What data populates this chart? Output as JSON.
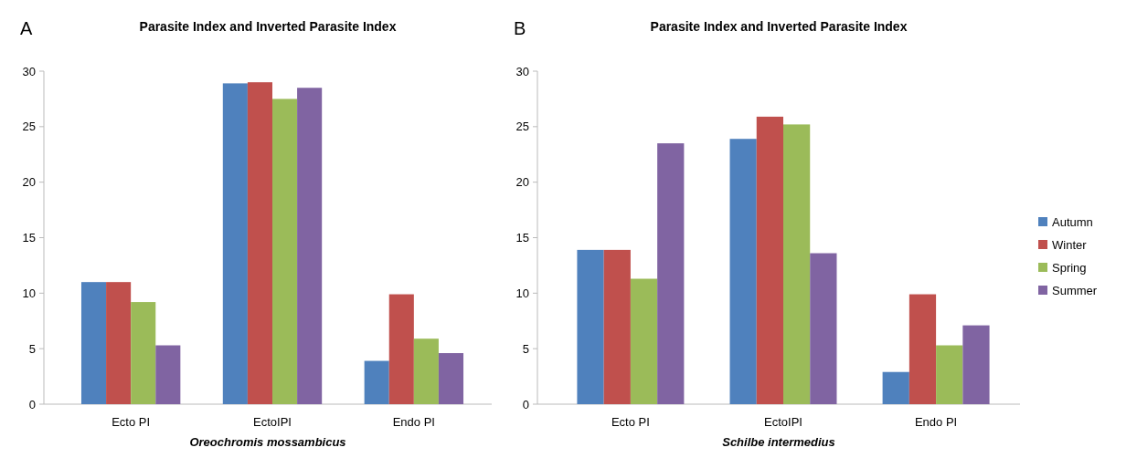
{
  "chart_data": [
    {
      "type": "bar",
      "title": "Parasite Index and Inverted Parasite Index",
      "annotations": [
        "A"
      ],
      "xlabel": "Oreochromis mossambicus",
      "categories": [
        "Ecto PI",
        "EctoIPI",
        "Endo PI"
      ],
      "ylim": [
        0,
        30
      ],
      "yticks": [
        0,
        5,
        10,
        15,
        20,
        25,
        30
      ],
      "legend": false,
      "series": [
        {
          "color": "#4f81bd",
          "values": [
            11,
            28.9,
            3.9
          ]
        },
        {
          "color": "#c0504d",
          "values": [
            11,
            29,
            9.9
          ]
        },
        {
          "color": "#9bbb59",
          "values": [
            9.2,
            27.5,
            5.9
          ]
        },
        {
          "color": "#8064a2",
          "values": [
            5.3,
            28.5,
            4.6
          ]
        }
      ]
    },
    {
      "type": "bar",
      "title": "Parasite Index and Inverted Parasite Index",
      "annotations": [
        "B"
      ],
      "xlabel": "Schilbe intermedius",
      "categories": [
        "Ecto PI",
        "EctoIPI",
        "Endo PI"
      ],
      "ylim": [
        0,
        30
      ],
      "yticks": [
        0,
        5,
        10,
        15,
        20,
        25,
        30
      ],
      "legend": "right",
      "series": [
        {
          "name": "Autumn",
          "color": "#4f81bd",
          "values": [
            13.9,
            23.9,
            2.9
          ]
        },
        {
          "name": "Winter",
          "color": "#c0504d",
          "values": [
            13.9,
            25.9,
            9.9
          ]
        },
        {
          "name": "Spring",
          "color": "#9bbb59",
          "values": [
            11.3,
            25.2,
            5.3
          ]
        },
        {
          "name": "Summer",
          "color": "#8064a2",
          "values": [
            23.5,
            13.6,
            7.1
          ]
        }
      ]
    }
  ]
}
